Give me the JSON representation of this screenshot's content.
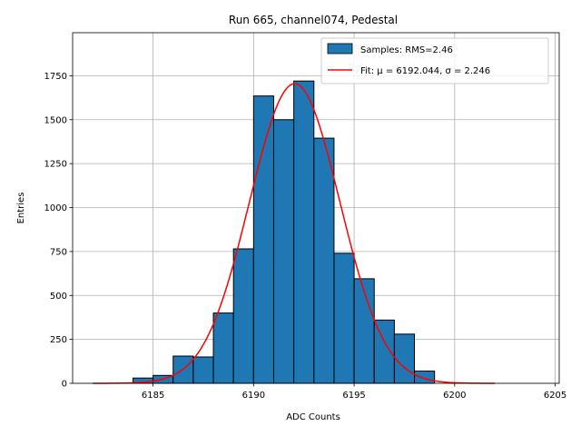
{
  "chart_data": {
    "type": "bar",
    "title": "Run 665, channel074, Pedestal",
    "xlabel": "ADC Counts",
    "ylabel": "Entries",
    "xlim": [
      6181.0,
      6205.2
    ],
    "ylim": [
      0,
      1995
    ],
    "x_ticks": [
      6185,
      6190,
      6195,
      6200,
      6205
    ],
    "y_ticks": [
      0,
      250,
      500,
      750,
      1000,
      1250,
      1500,
      1750
    ],
    "grid": true,
    "legend_position": "top-right",
    "colors": {
      "bars": "#1f77b4",
      "bar_edge": "#000000",
      "fit": "#ff0000"
    },
    "histogram": {
      "name": "Samples: RMS=2.46",
      "bin_width": 1,
      "bin_starts": [
        6184,
        6185,
        6186,
        6187,
        6188,
        6189,
        6190,
        6191,
        6192,
        6193,
        6194,
        6195,
        6196,
        6197,
        6198
      ],
      "counts": [
        30,
        45,
        155,
        150,
        400,
        765,
        1635,
        1500,
        1720,
        1395,
        740,
        595,
        360,
        280,
        70
      ]
    },
    "fit": {
      "name": "Fit: μ = 6192.044, σ = 2.246",
      "mu": 6192.044,
      "sigma": 2.246,
      "amplitude": 1705,
      "x_range": [
        6182,
        6202
      ]
    }
  }
}
